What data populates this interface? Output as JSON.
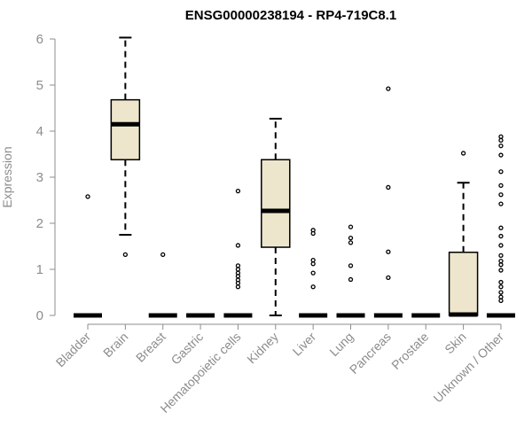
{
  "chart_data": {
    "type": "box",
    "title": "ENSG00000238194 - RP4-719C8.1",
    "ylabel": "Expression",
    "xlabel": "",
    "ylim": [
      0,
      6
    ],
    "yticks": [
      "0",
      "1",
      "2",
      "3",
      "4",
      "5",
      "6"
    ],
    "grid": false,
    "box_fill": "#ede6cc",
    "axis_color": "#8c8c8c",
    "categories": [
      "Bladder",
      "Brain",
      "Breast",
      "Gastric",
      "Hematopoietic cells",
      "Kidney",
      "Liver",
      "Lung",
      "Pancreas",
      "Prostate",
      "Skin",
      "Unknown / Other"
    ],
    "boxes": [
      {
        "q1": 0,
        "median": 0,
        "q3": 0,
        "whisker_low": 0,
        "whisker_high": 0,
        "outliers": [
          2.58
        ]
      },
      {
        "q1": 3.38,
        "median": 4.15,
        "q3": 4.68,
        "whisker_low": 1.75,
        "whisker_high": 6.03,
        "outliers": [
          1.32
        ]
      },
      {
        "q1": 0,
        "median": 0,
        "q3": 0,
        "whisker_low": 0,
        "whisker_high": 0,
        "outliers": [
          1.32
        ]
      },
      {
        "q1": 0,
        "median": 0,
        "q3": 0,
        "whisker_low": 0,
        "whisker_high": 0,
        "outliers": []
      },
      {
        "q1": 0,
        "median": 0,
        "q3": 0,
        "whisker_low": 0,
        "whisker_high": 0,
        "outliers": [
          2.7,
          1.52,
          1.08,
          1.0,
          0.92,
          0.85,
          0.77,
          0.7,
          0.62
        ]
      },
      {
        "q1": 1.48,
        "median": 2.27,
        "q3": 3.38,
        "whisker_low": 0,
        "whisker_high": 4.27,
        "outliers": []
      },
      {
        "q1": 0,
        "median": 0,
        "q3": 0,
        "whisker_low": 0,
        "whisker_high": 0,
        "outliers": [
          1.85,
          1.78,
          1.2,
          1.12,
          0.92,
          0.62
        ]
      },
      {
        "q1": 0,
        "median": 0,
        "q3": 0,
        "whisker_low": 0,
        "whisker_high": 0,
        "outliers": [
          1.92,
          1.68,
          1.58,
          1.08,
          0.78
        ]
      },
      {
        "q1": 0,
        "median": 0,
        "q3": 0,
        "whisker_low": 0,
        "whisker_high": 0,
        "outliers": [
          4.92,
          2.78,
          1.38,
          0.82
        ]
      },
      {
        "q1": 0,
        "median": 0,
        "q3": 0,
        "whisker_low": 0,
        "whisker_high": 0,
        "outliers": []
      },
      {
        "q1": 0,
        "median": 0.02,
        "q3": 1.37,
        "whisker_low": 0,
        "whisker_high": 2.88,
        "outliers": [
          3.52
        ]
      },
      {
        "q1": 0,
        "median": 0,
        "q3": 0,
        "whisker_low": 0,
        "whisker_high": 0,
        "outliers": [
          3.88,
          3.8,
          3.68,
          3.48,
          3.12,
          2.82,
          2.62,
          2.42,
          1.9,
          1.72,
          1.52,
          1.3,
          1.18,
          1.1,
          0.98,
          0.72,
          0.62,
          0.5,
          0.4,
          0.32
        ]
      }
    ]
  }
}
